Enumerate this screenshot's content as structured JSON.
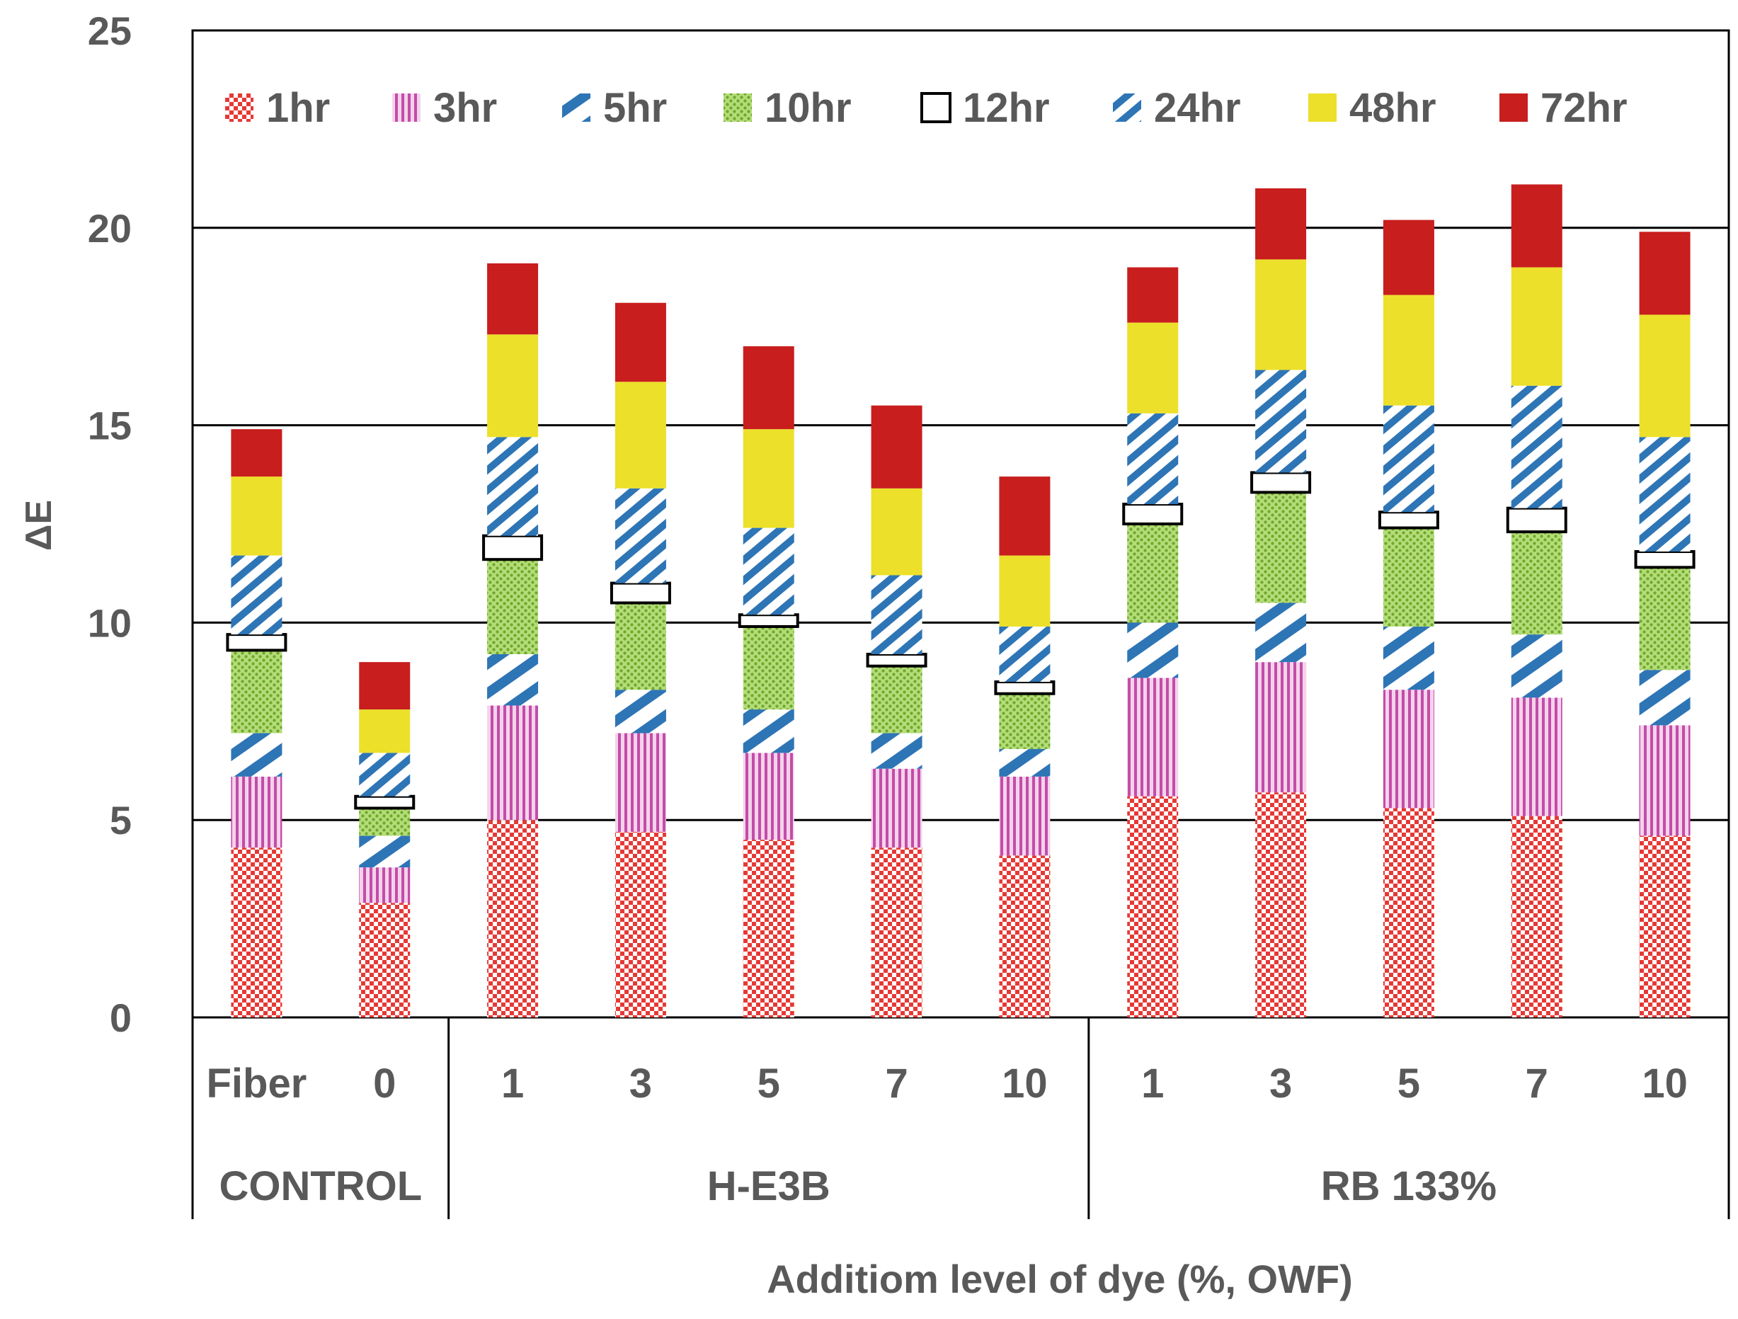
{
  "chart_data": {
    "type": "bar",
    "stacked": true,
    "title": "",
    "xlabel": "Additiom level of dye (%, OWF)",
    "ylabel": "ΔE",
    "ylim": [
      0,
      25
    ],
    "yticks": [
      0,
      5,
      10,
      15,
      20,
      25
    ],
    "grid": true,
    "legend_position": "top",
    "categories": [
      "Fiber",
      "0",
      "1",
      "3",
      "5",
      "7",
      "10",
      "1",
      "3",
      "5",
      "7",
      "10"
    ],
    "groups": [
      {
        "label": "CONTROL",
        "count": 2
      },
      {
        "label": "H-E3B",
        "count": 5
      },
      {
        "label": "RB 133%",
        "count": 5
      }
    ],
    "series": [
      {
        "name": "1hr",
        "pattern": "checker",
        "color": "#e53935",
        "values": [
          4.3,
          2.9,
          5.0,
          4.7,
          4.5,
          4.3,
          4.1,
          5.6,
          5.7,
          5.3,
          5.1,
          4.6
        ]
      },
      {
        "name": "3hr",
        "pattern": "vstripes",
        "color": "#c44ca8",
        "values": [
          1.8,
          0.9,
          2.9,
          2.5,
          2.2,
          2.0,
          2.0,
          3.0,
          3.3,
          3.0,
          3.0,
          2.8
        ]
      },
      {
        "name": "5hr",
        "pattern": "wide-diag",
        "color": "#2e75b6",
        "values": [
          1.1,
          0.8,
          1.3,
          1.1,
          1.1,
          0.9,
          0.7,
          1.4,
          1.5,
          1.6,
          1.6,
          1.4
        ]
      },
      {
        "name": "10hr",
        "pattern": "green-dots",
        "color": "#8dc63f",
        "values": [
          2.1,
          0.7,
          2.4,
          2.2,
          2.1,
          1.7,
          1.4,
          2.5,
          2.8,
          2.5,
          2.6,
          2.6
        ]
      },
      {
        "name": "12hr",
        "pattern": "white-box",
        "color": "#ffffff",
        "values": [
          0.4,
          0.3,
          0.6,
          0.5,
          0.3,
          0.3,
          0.3,
          0.5,
          0.5,
          0.4,
          0.6,
          0.4
        ]
      },
      {
        "name": "24hr",
        "pattern": "narrow-diag",
        "color": "#2e75b6",
        "values": [
          2.0,
          1.1,
          2.5,
          2.4,
          2.2,
          2.0,
          1.4,
          2.3,
          2.6,
          2.7,
          3.1,
          2.9
        ]
      },
      {
        "name": "48hr",
        "pattern": "solid",
        "color": "#ece02b",
        "values": [
          2.0,
          1.1,
          2.6,
          2.7,
          2.5,
          2.2,
          1.8,
          2.3,
          2.8,
          2.8,
          3.0,
          3.1
        ]
      },
      {
        "name": "72hr",
        "pattern": "solid",
        "color": "#c81e1e",
        "values": [
          1.2,
          1.2,
          1.8,
          2.0,
          2.1,
          2.1,
          2.0,
          1.4,
          1.8,
          1.9,
          2.1,
          2.1
        ]
      }
    ]
  }
}
